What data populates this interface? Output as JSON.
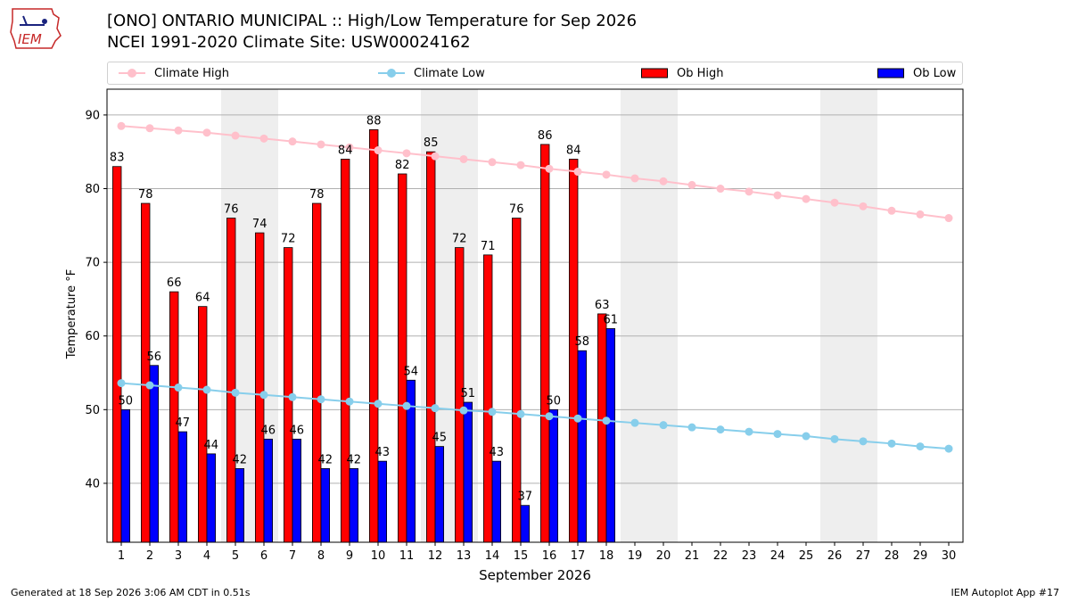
{
  "header": {
    "title_line1": "[ONO] ONTARIO MUNICIPAL :: High/Low Temperature for Sep 2026",
    "title_line2": "NCEI 1991-2020 Climate Site: USW00024162",
    "logo_text": "IEM"
  },
  "footer": {
    "generated": "Generated at 18 Sep 2026 3:06 AM CDT in 0.51s",
    "app": "IEM Autoplot App #17"
  },
  "colors": {
    "climate_high": "#ffc0cb",
    "climate_low": "#87ceeb",
    "ob_high": "#ff0000",
    "ob_low": "#0000ff",
    "weekend_shade": "#eeeeee",
    "grid": "#b0b0b0"
  },
  "chart_data": {
    "type": "bar",
    "xlabel": "September 2026",
    "ylabel": "Temperature °F",
    "ylim": [
      32,
      93.5
    ],
    "xlim": [
      0.5,
      30.5
    ],
    "yticks": [
      40,
      50,
      60,
      70,
      80,
      90
    ],
    "grid": "horizontal",
    "legend_placement": "top",
    "shaded_days": [
      5,
      6,
      12,
      13,
      19,
      20,
      26,
      27
    ],
    "days": [
      1,
      2,
      3,
      4,
      5,
      6,
      7,
      8,
      9,
      10,
      11,
      12,
      13,
      14,
      15,
      16,
      17,
      18,
      19,
      20,
      21,
      22,
      23,
      24,
      25,
      26,
      27,
      28,
      29,
      30
    ],
    "series": [
      {
        "name": "Climate High",
        "kind": "line",
        "values": [
          88.5,
          88.2,
          87.9,
          87.6,
          87.2,
          86.8,
          86.4,
          86.0,
          85.6,
          85.2,
          84.8,
          84.4,
          84.0,
          83.6,
          83.2,
          82.7,
          82.3,
          81.9,
          81.4,
          81.0,
          80.5,
          80.0,
          79.6,
          79.1,
          78.6,
          78.1,
          77.6,
          77.0,
          76.5,
          76.0
        ]
      },
      {
        "name": "Climate Low",
        "kind": "line",
        "values": [
          53.6,
          53.3,
          53.0,
          52.7,
          52.3,
          52.0,
          51.7,
          51.4,
          51.1,
          50.8,
          50.5,
          50.2,
          49.9,
          49.7,
          49.4,
          49.1,
          48.8,
          48.5,
          48.2,
          47.9,
          47.6,
          47.3,
          47.0,
          46.7,
          46.4,
          46.0,
          45.7,
          45.4,
          45.0,
          44.7
        ]
      },
      {
        "name": "Ob High",
        "kind": "bar",
        "values": [
          83,
          78,
          66,
          64,
          76,
          74,
          72,
          78,
          84,
          88,
          82,
          85,
          72,
          71,
          76,
          86,
          84,
          63
        ]
      },
      {
        "name": "Ob Low",
        "kind": "bar",
        "values": [
          50,
          56,
          47,
          44,
          42,
          46,
          46,
          42,
          42,
          43,
          54,
          45,
          51,
          43,
          37,
          50,
          58,
          61
        ]
      }
    ]
  }
}
